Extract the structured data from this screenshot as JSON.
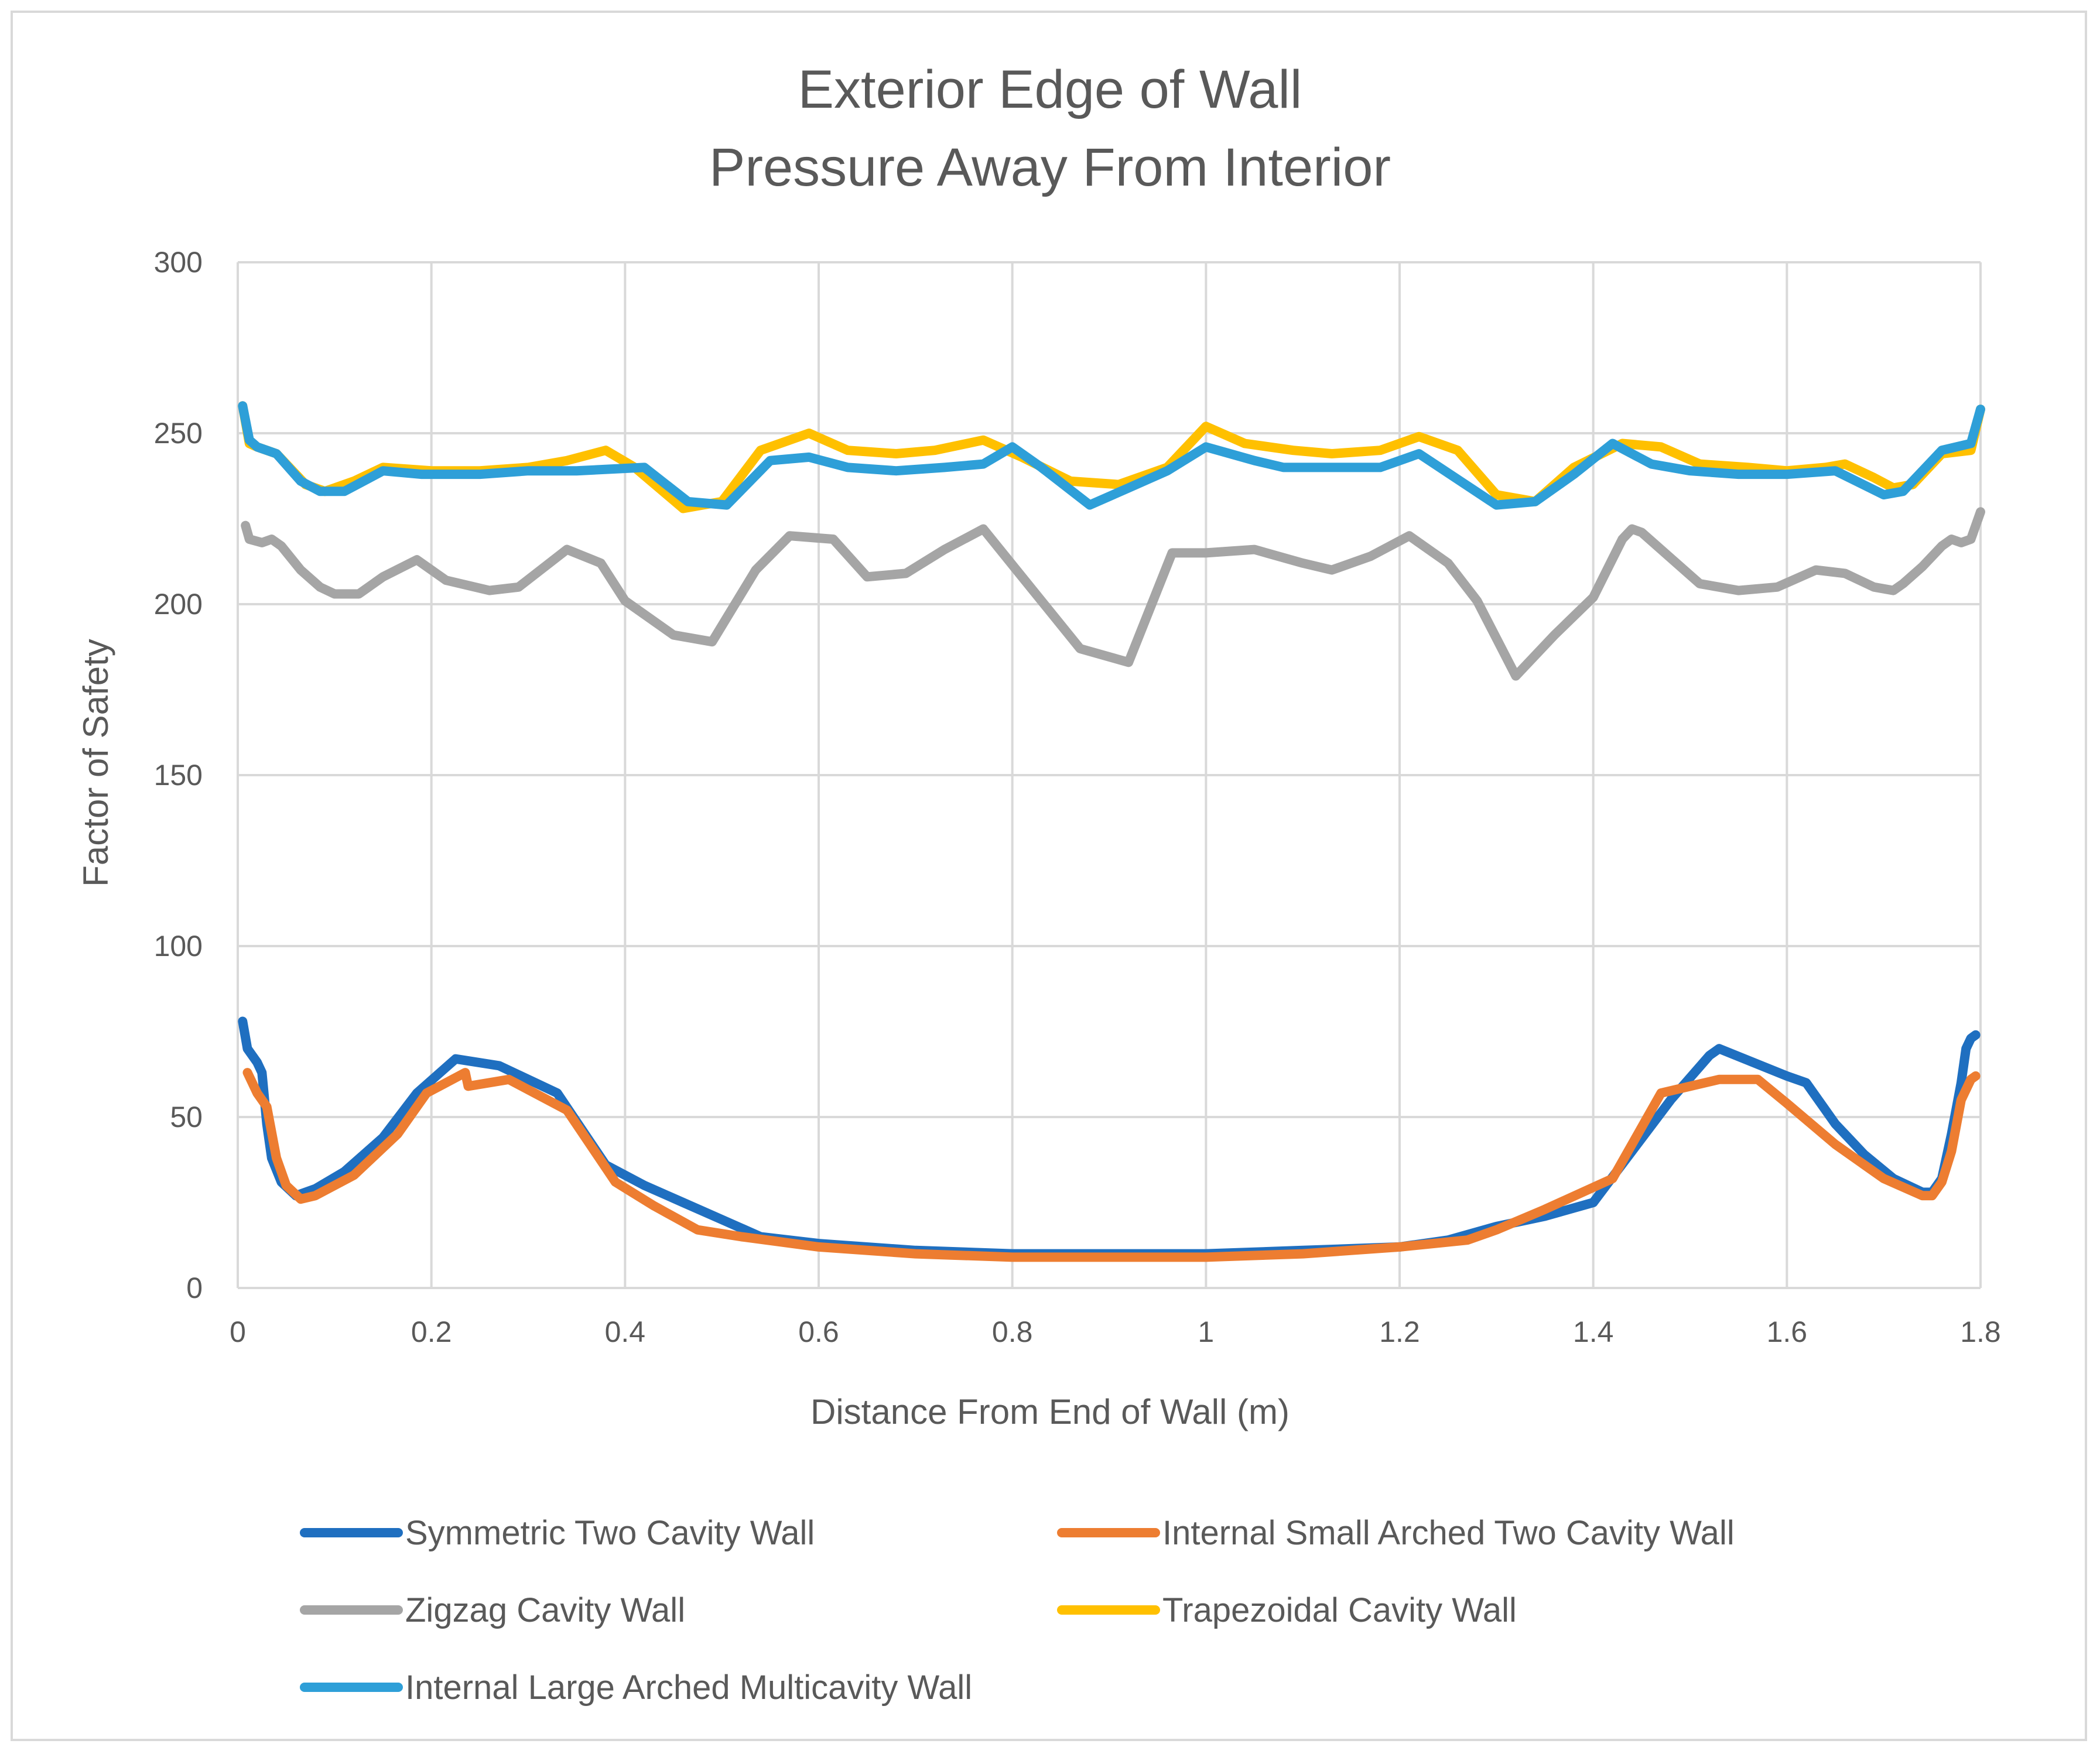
{
  "chart_data": {
    "type": "line",
    "title": [
      "Exterior Edge of Wall",
      "Pressure Away From Interior"
    ],
    "xlabel": "Distance From End of Wall (m)",
    "ylabel": "Factor of Safety",
    "xlim": [
      0,
      1.8
    ],
    "ylim": [
      0,
      300
    ],
    "xticks": [
      0,
      0.2,
      0.4,
      0.6,
      0.8,
      1,
      1.2,
      1.4,
      1.6,
      1.8
    ],
    "xtick_labels": [
      "0",
      "0.2",
      "0.4",
      "0.6",
      "0.8",
      "1",
      "1.2",
      "1.4",
      "1.6",
      "1.8"
    ],
    "yticks": [
      0,
      50,
      100,
      150,
      200,
      250,
      300
    ],
    "ytick_labels": [
      "0",
      "50",
      "100",
      "150",
      "200",
      "250",
      "300"
    ],
    "grid": true,
    "legend_position": "bottom",
    "series": [
      {
        "name": "Symmetric Two Cavity Wall",
        "color": "#1f6fc0",
        "points": [
          [
            0.005,
            78
          ],
          [
            0.01,
            70
          ],
          [
            0.02,
            66
          ],
          [
            0.025,
            63
          ],
          [
            0.03,
            48
          ],
          [
            0.035,
            38
          ],
          [
            0.045,
            31
          ],
          [
            0.06,
            27
          ],
          [
            0.08,
            29
          ],
          [
            0.11,
            34
          ],
          [
            0.15,
            44
          ],
          [
            0.185,
            57
          ],
          [
            0.225,
            67
          ],
          [
            0.27,
            65
          ],
          [
            0.33,
            57
          ],
          [
            0.38,
            36
          ],
          [
            0.42,
            30
          ],
          [
            0.46,
            25
          ],
          [
            0.5,
            20
          ],
          [
            0.54,
            15
          ],
          [
            0.6,
            13
          ],
          [
            0.7,
            11
          ],
          [
            0.8,
            10
          ],
          [
            0.9,
            10
          ],
          [
            1.0,
            10
          ],
          [
            1.1,
            11
          ],
          [
            1.2,
            12
          ],
          [
            1.25,
            14
          ],
          [
            1.3,
            18
          ],
          [
            1.35,
            21
          ],
          [
            1.4,
            25
          ],
          [
            1.44,
            40
          ],
          [
            1.48,
            55
          ],
          [
            1.52,
            68
          ],
          [
            1.53,
            70
          ],
          [
            1.6,
            62
          ],
          [
            1.62,
            60
          ],
          [
            1.65,
            48
          ],
          [
            1.68,
            39
          ],
          [
            1.71,
            32
          ],
          [
            1.74,
            28
          ],
          [
            1.75,
            28
          ],
          [
            1.76,
            32
          ],
          [
            1.77,
            45
          ],
          [
            1.78,
            60
          ],
          [
            1.785,
            70
          ],
          [
            1.79,
            73
          ],
          [
            1.795,
            74
          ]
        ]
      },
      {
        "name": "Internal Small Arched Two Cavity Wall",
        "color": "#ed7d31",
        "points": [
          [
            0.01,
            63
          ],
          [
            0.02,
            57
          ],
          [
            0.03,
            53
          ],
          [
            0.04,
            38
          ],
          [
            0.05,
            30
          ],
          [
            0.065,
            26
          ],
          [
            0.08,
            27
          ],
          [
            0.12,
            33
          ],
          [
            0.165,
            45
          ],
          [
            0.195,
            57
          ],
          [
            0.235,
            63
          ],
          [
            0.238,
            59
          ],
          [
            0.28,
            61
          ],
          [
            0.34,
            52
          ],
          [
            0.39,
            31
          ],
          [
            0.43,
            24
          ],
          [
            0.475,
            17
          ],
          [
            0.52,
            15
          ],
          [
            0.6,
            12
          ],
          [
            0.7,
            10
          ],
          [
            0.8,
            9
          ],
          [
            0.9,
            9
          ],
          [
            1.0,
            9
          ],
          [
            1.1,
            10
          ],
          [
            1.2,
            12
          ],
          [
            1.27,
            14
          ],
          [
            1.3,
            17
          ],
          [
            1.35,
            23
          ],
          [
            1.42,
            32
          ],
          [
            1.47,
            57
          ],
          [
            1.53,
            61
          ],
          [
            1.57,
            61
          ],
          [
            1.6,
            54
          ],
          [
            1.65,
            42
          ],
          [
            1.7,
            32
          ],
          [
            1.74,
            27
          ],
          [
            1.75,
            27
          ],
          [
            1.76,
            31
          ],
          [
            1.77,
            40
          ],
          [
            1.78,
            55
          ],
          [
            1.79,
            61
          ],
          [
            1.795,
            62
          ]
        ]
      },
      {
        "name": "Zigzag Cavity Wall",
        "color": "#a5a5a5",
        "points": [
          [
            0.008,
            223
          ],
          [
            0.012,
            219
          ],
          [
            0.025,
            218
          ],
          [
            0.035,
            219
          ],
          [
            0.045,
            217
          ],
          [
            0.065,
            210
          ],
          [
            0.085,
            205
          ],
          [
            0.1,
            203
          ],
          [
            0.125,
            203
          ],
          [
            0.15,
            208
          ],
          [
            0.185,
            213
          ],
          [
            0.215,
            207
          ],
          [
            0.26,
            204
          ],
          [
            0.29,
            205
          ],
          [
            0.34,
            216
          ],
          [
            0.375,
            212
          ],
          [
            0.4,
            201
          ],
          [
            0.45,
            191
          ],
          [
            0.49,
            189
          ],
          [
            0.535,
            210
          ],
          [
            0.57,
            220
          ],
          [
            0.615,
            219
          ],
          [
            0.65,
            208
          ],
          [
            0.69,
            209
          ],
          [
            0.73,
            216
          ],
          [
            0.77,
            222
          ],
          [
            0.81,
            208
          ],
          [
            0.87,
            187
          ],
          [
            0.92,
            183
          ],
          [
            0.965,
            215
          ],
          [
            1.0,
            215
          ],
          [
            1.05,
            216
          ],
          [
            1.1,
            212
          ],
          [
            1.13,
            210
          ],
          [
            1.17,
            214
          ],
          [
            1.21,
            220
          ],
          [
            1.25,
            212
          ],
          [
            1.28,
            201
          ],
          [
            1.32,
            179
          ],
          [
            1.36,
            191
          ],
          [
            1.4,
            202
          ],
          [
            1.43,
            219
          ],
          [
            1.44,
            222
          ],
          [
            1.45,
            221
          ],
          [
            1.47,
            216
          ],
          [
            1.51,
            206
          ],
          [
            1.55,
            204
          ],
          [
            1.59,
            205
          ],
          [
            1.63,
            210
          ],
          [
            1.66,
            209
          ],
          [
            1.69,
            205
          ],
          [
            1.71,
            204
          ],
          [
            1.72,
            206
          ],
          [
            1.74,
            211
          ],
          [
            1.76,
            217
          ],
          [
            1.77,
            219
          ],
          [
            1.78,
            218
          ],
          [
            1.79,
            219
          ],
          [
            1.8,
            227
          ]
        ]
      },
      {
        "name": "Trapezoidal Cavity Wall",
        "color": "#ffc000",
        "points": [
          [
            0.005,
            258
          ],
          [
            0.012,
            247
          ],
          [
            0.02,
            246
          ],
          [
            0.04,
            244
          ],
          [
            0.07,
            235
          ],
          [
            0.09,
            233
          ],
          [
            0.12,
            236
          ],
          [
            0.15,
            240
          ],
          [
            0.2,
            239
          ],
          [
            0.25,
            239
          ],
          [
            0.3,
            240
          ],
          [
            0.34,
            242
          ],
          [
            0.38,
            245
          ],
          [
            0.41,
            240
          ],
          [
            0.46,
            228
          ],
          [
            0.5,
            230
          ],
          [
            0.54,
            245
          ],
          [
            0.59,
            250
          ],
          [
            0.63,
            245
          ],
          [
            0.68,
            244
          ],
          [
            0.72,
            245
          ],
          [
            0.77,
            248
          ],
          [
            0.81,
            243
          ],
          [
            0.86,
            236
          ],
          [
            0.91,
            235
          ],
          [
            0.96,
            240
          ],
          [
            1.0,
            252
          ],
          [
            1.04,
            247
          ],
          [
            1.09,
            245
          ],
          [
            1.13,
            244
          ],
          [
            1.18,
            245
          ],
          [
            1.22,
            249
          ],
          [
            1.26,
            245
          ],
          [
            1.3,
            232
          ],
          [
            1.34,
            230
          ],
          [
            1.38,
            240
          ],
          [
            1.43,
            247
          ],
          [
            1.47,
            246
          ],
          [
            1.51,
            241
          ],
          [
            1.56,
            240
          ],
          [
            1.6,
            239
          ],
          [
            1.64,
            240
          ],
          [
            1.66,
            241
          ],
          [
            1.69,
            237
          ],
          [
            1.71,
            234
          ],
          [
            1.73,
            235
          ],
          [
            1.76,
            244
          ],
          [
            1.79,
            245
          ],
          [
            1.8,
            257
          ]
        ]
      },
      {
        "name": "Internal Large Arched Multicavity Wall",
        "color": "#2e9fd8",
        "points": [
          [
            0.005,
            258
          ],
          [
            0.012,
            248
          ],
          [
            0.02,
            246
          ],
          [
            0.04,
            244
          ],
          [
            0.065,
            236
          ],
          [
            0.085,
            233
          ],
          [
            0.11,
            233
          ],
          [
            0.15,
            239
          ],
          [
            0.19,
            238
          ],
          [
            0.25,
            238
          ],
          [
            0.3,
            239
          ],
          [
            0.35,
            239
          ],
          [
            0.42,
            240
          ],
          [
            0.465,
            230
          ],
          [
            0.505,
            229
          ],
          [
            0.55,
            242
          ],
          [
            0.59,
            243
          ],
          [
            0.63,
            240
          ],
          [
            0.68,
            239
          ],
          [
            0.73,
            240
          ],
          [
            0.77,
            241
          ],
          [
            0.8,
            246
          ],
          [
            0.83,
            240
          ],
          [
            0.88,
            229
          ],
          [
            0.92,
            234
          ],
          [
            0.96,
            239
          ],
          [
            1.0,
            246
          ],
          [
            1.05,
            242
          ],
          [
            1.08,
            240
          ],
          [
            1.12,
            240
          ],
          [
            1.18,
            240
          ],
          [
            1.22,
            244
          ],
          [
            1.3,
            229
          ],
          [
            1.34,
            230
          ],
          [
            1.38,
            238
          ],
          [
            1.42,
            247
          ],
          [
            1.46,
            241
          ],
          [
            1.5,
            239
          ],
          [
            1.55,
            238
          ],
          [
            1.6,
            238
          ],
          [
            1.65,
            239
          ],
          [
            1.7,
            232
          ],
          [
            1.72,
            233
          ],
          [
            1.76,
            245
          ],
          [
            1.79,
            247
          ],
          [
            1.8,
            257
          ]
        ]
      }
    ]
  }
}
